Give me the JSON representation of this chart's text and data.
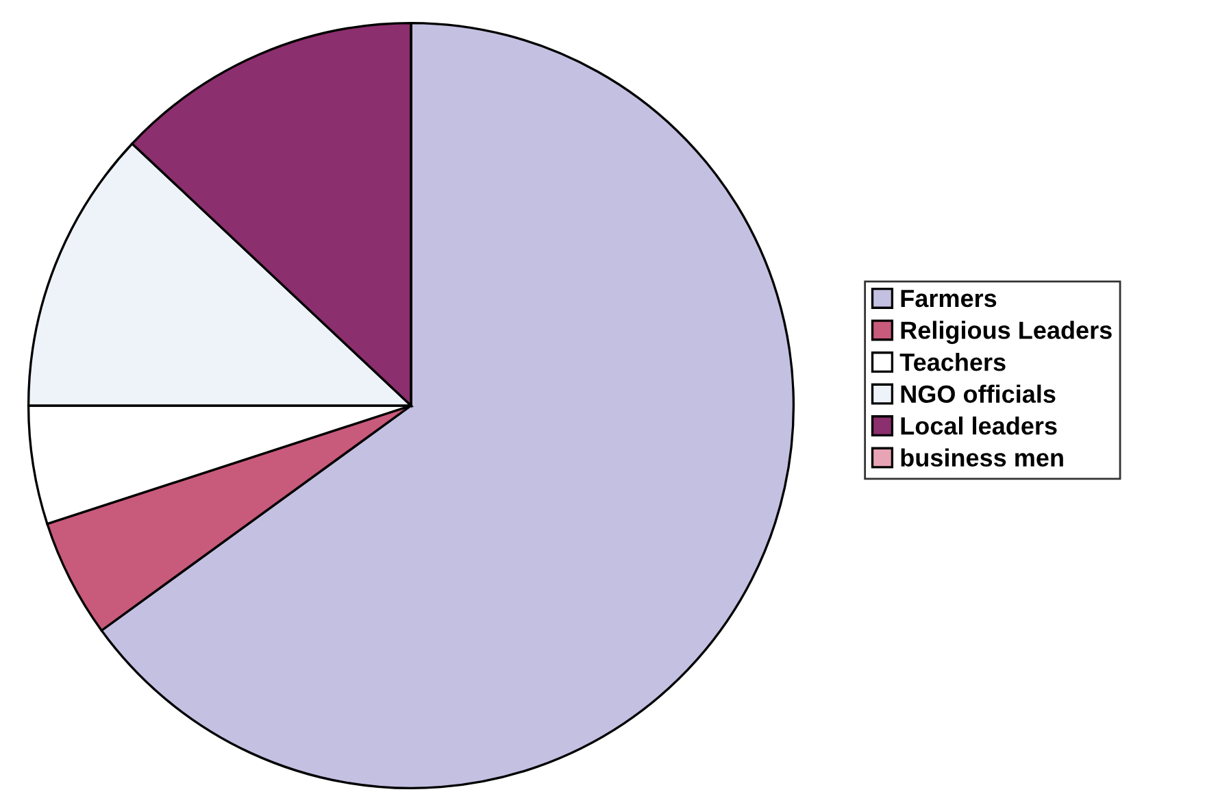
{
  "chart_data": {
    "type": "pie",
    "categories": [
      "Farmers",
      "Religious Leaders",
      "Teachers",
      "NGO officials",
      "Local leaders",
      "business men"
    ],
    "values": [
      65,
      5,
      5,
      12,
      13,
      0
    ],
    "colors": [
      "#c4c0e2",
      "#c85a7c",
      "#ffffff",
      "#eef3fa",
      "#8c2f6e",
      "#e8a4b4"
    ],
    "legend": "right"
  }
}
